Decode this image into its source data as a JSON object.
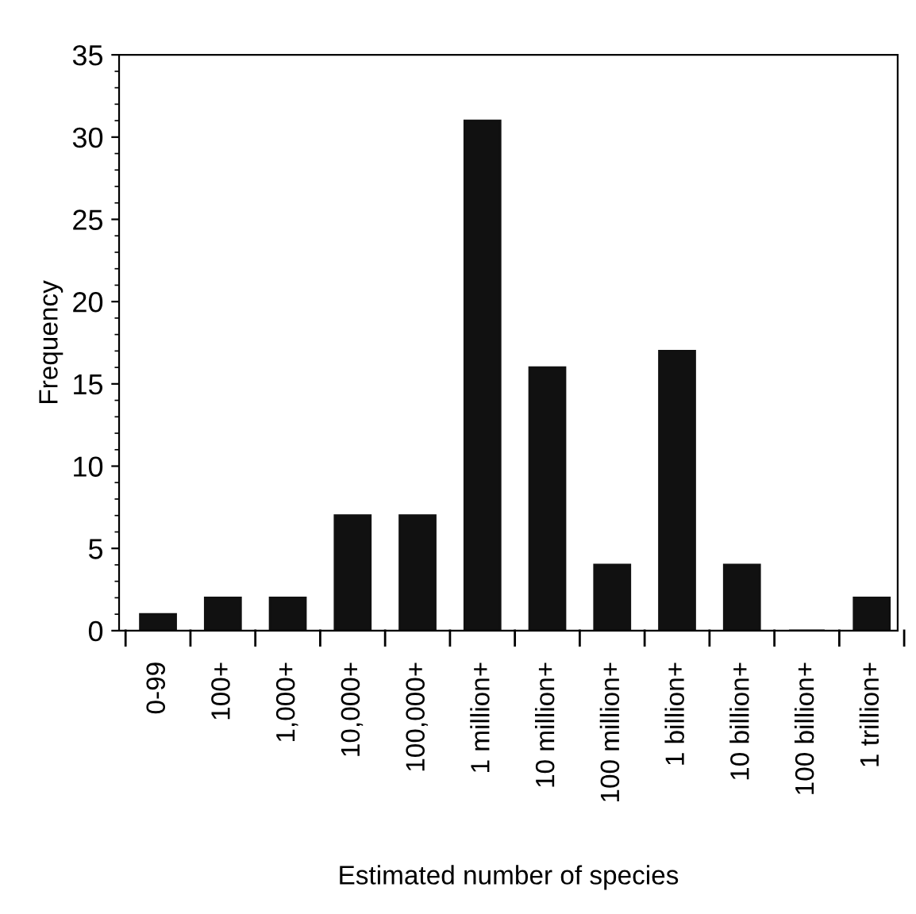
{
  "chart_data": {
    "type": "bar",
    "xlabel": "Estimated number of species",
    "ylabel": "Frequency",
    "categories": [
      "0-99",
      "100+",
      "1,000+",
      "10,000+",
      "100,000+",
      "1 million+",
      "10 million+",
      "100 million+",
      "1 billion+",
      "10 billion+",
      "100 billion+",
      "1 trillion+"
    ],
    "values": [
      1,
      2,
      2,
      7,
      7,
      31,
      16,
      4,
      17,
      4,
      0,
      2
    ],
    "color": "#111111",
    "ylim": [
      0,
      35
    ],
    "yticks": [
      0,
      5,
      10,
      15,
      20,
      25,
      30,
      35
    ],
    "grid": false
  }
}
